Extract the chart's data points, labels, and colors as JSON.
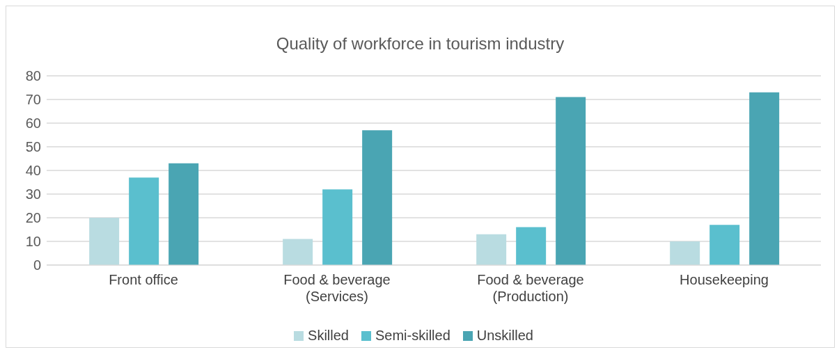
{
  "chart_data": {
    "type": "bar",
    "title": "Quality of workforce in tourism industry",
    "categories": [
      "Front office",
      "Food & beverage (Services)",
      "Food & beverage (Production)",
      "Housekeeping"
    ],
    "series": [
      {
        "name": "Skilled",
        "color": "#b9dce1",
        "values": [
          20,
          11,
          13,
          10
        ]
      },
      {
        "name": "Semi-skilled",
        "color": "#5abfce",
        "values": [
          37,
          32,
          16,
          17
        ]
      },
      {
        "name": "Unskilled",
        "color": "#4aa5b3",
        "values": [
          43,
          57,
          71,
          73
        ]
      }
    ],
    "ylim": [
      0,
      80
    ],
    "yticks": [
      0,
      10,
      20,
      30,
      40,
      50,
      60,
      70,
      80
    ],
    "grid": "y",
    "legend": "bottom"
  }
}
